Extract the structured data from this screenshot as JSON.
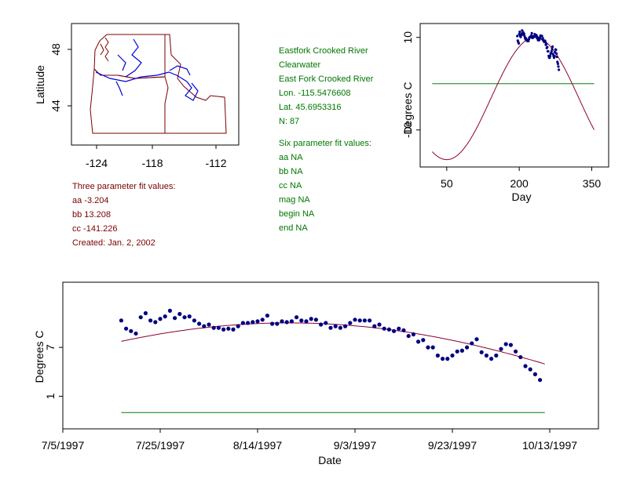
{
  "map": {
    "ylabel": "Latitude",
    "x_ticks": [
      "-124",
      "-118",
      "-112"
    ],
    "y_ticks": [
      "48",
      "44"
    ],
    "colors": {
      "state_lines": "#7a0000",
      "rivers": "#0000dd"
    }
  },
  "three_param": {
    "heading": "Three parameter fit values:",
    "aa": "aa -3.204",
    "bb": "bb 13.208",
    "cc": "cc -141.226",
    "created": "Created:   Jan. 2, 2002"
  },
  "site": {
    "name": "Eastfork Crooked River",
    "basin": "Clearwater",
    "river": "East Fork Crooked River",
    "lon": "Lon. -115.5476608",
    "lat": "Lat. 45.6953316",
    "n": "N: 87"
  },
  "six_param": {
    "heading": "Six parameter fit values:",
    "aa": "aa NA",
    "bb": "bb NA",
    "cc": "cc NA",
    "mag": "mag NA",
    "begin": "begin NA",
    "end": "end NA"
  },
  "chart_data": [
    {
      "type": "scatter",
      "name": "seasonal",
      "xlabel": "Day",
      "ylabel": "Degrees C",
      "x_ticks": [
        "50",
        "200",
        "350"
      ],
      "y_ticks": [
        "10",
        "-10"
      ],
      "xlim": [
        -5,
        385
      ],
      "ylim": [
        -18,
        13
      ],
      "colors": {
        "points": "#000080",
        "fit": "#8b0030",
        "baseline": "#008000"
      },
      "fit_curve": {
        "a": -3.204,
        "b": 13.208,
        "c": -141.226,
        "period": 365,
        "x_range": [
          20,
          355
        ]
      },
      "baseline": 0,
      "x": [
        196,
        197,
        198,
        199,
        200,
        201,
        202,
        203,
        204,
        205,
        206,
        207,
        208,
        209,
        210,
        211,
        212,
        213,
        214,
        215,
        216,
        217,
        218,
        219,
        220,
        221,
        222,
        223,
        224,
        225,
        226,
        227,
        228,
        229,
        230,
        231,
        232,
        233,
        234,
        235,
        236,
        237,
        238,
        239,
        240,
        241,
        242,
        243,
        244,
        245,
        246,
        247,
        248,
        249,
        250,
        251,
        252,
        253,
        254,
        255,
        256,
        257,
        258,
        259,
        260,
        261,
        262,
        263,
        264,
        265,
        266,
        267,
        268,
        269,
        270,
        271,
        272,
        273,
        274,
        275,
        276,
        277,
        278,
        279,
        280,
        281,
        282
      ],
      "values": [
        10.3,
        9.3,
        9.0,
        8.7,
        10.7,
        11.2,
        10.3,
        10.1,
        10.5,
        10.8,
        11.5,
        10.6,
        11.1,
        10.7,
        10.8,
        10.3,
        9.9,
        9.6,
        9.8,
        9.4,
        9.4,
        9.2,
        9.3,
        9.2,
        9.6,
        10.0,
        10.0,
        10.1,
        10.2,
        10.4,
        10.9,
        9.9,
        9.9,
        10.2,
        10.1,
        10.2,
        10.7,
        10.3,
        10.2,
        10.5,
        10.4,
        9.8,
        10.0,
        9.4,
        9.6,
        9.4,
        9.6,
        10.0,
        10.4,
        10.3,
        10.3,
        10.3,
        9.6,
        9.8,
        9.3,
        9.2,
        9.0,
        9.3,
        9.1,
        8.4,
        8.6,
        7.7,
        7.9,
        7.0,
        7.0,
        6.0,
        5.6,
        5.6,
        6.0,
        6.5,
        6.6,
        7.0,
        7.5,
        8.0,
        6.4,
        6.0,
        5.6,
        6.0,
        6.8,
        7.4,
        7.3,
        6.5,
        5.8,
        4.7,
        4.3,
        3.7,
        3.0
      ]
    },
    {
      "type": "scatter",
      "name": "daily",
      "xlabel": "Date",
      "ylabel": "Degrees C",
      "x_ticks": [
        "7/5/1997",
        "7/25/1997",
        "8/14/1997",
        "9/3/1997",
        "9/23/1997",
        "10/13/1997"
      ],
      "y_ticks": [
        "7",
        "1"
      ],
      "xlim": [
        186,
        296
      ],
      "ylim": [
        -3,
        15
      ],
      "colors": {
        "points": "#000080",
        "fit": "#8b0030",
        "baseline": "#008000"
      },
      "fit_curve": {
        "a": -3.204,
        "b": 13.208,
        "c": -141.226,
        "period": 365,
        "x_range": [
          198,
          285
        ]
      },
      "baseline": -1,
      "x": [
        198,
        199,
        200,
        201,
        202,
        203,
        204,
        205,
        206,
        207,
        208,
        209,
        210,
        211,
        212,
        213,
        214,
        215,
        216,
        217,
        218,
        219,
        220,
        221,
        222,
        223,
        224,
        225,
        226,
        227,
        228,
        229,
        230,
        231,
        232,
        233,
        234,
        235,
        236,
        237,
        238,
        239,
        240,
        241,
        242,
        243,
        244,
        245,
        246,
        247,
        248,
        249,
        250,
        251,
        252,
        253,
        254,
        255,
        256,
        257,
        258,
        259,
        260,
        261,
        262,
        263,
        264,
        265,
        266,
        267,
        268,
        269,
        270,
        271,
        272,
        273,
        274,
        275,
        276,
        277,
        278,
        279,
        280,
        281,
        282,
        283,
        284
      ],
      "values": [
        10.3,
        9.3,
        9.0,
        8.7,
        10.7,
        11.2,
        10.3,
        10.1,
        10.5,
        10.8,
        11.5,
        10.6,
        11.1,
        10.7,
        10.8,
        10.3,
        9.9,
        9.6,
        9.8,
        9.4,
        9.4,
        9.2,
        9.3,
        9.2,
        9.6,
        10.0,
        10.0,
        10.1,
        10.2,
        10.4,
        10.9,
        9.9,
        9.9,
        10.2,
        10.1,
        10.2,
        10.7,
        10.3,
        10.2,
        10.5,
        10.4,
        9.8,
        10.0,
        9.4,
        9.6,
        9.4,
        9.6,
        10.0,
        10.4,
        10.3,
        10.3,
        10.3,
        9.6,
        9.8,
        9.3,
        9.2,
        9.0,
        9.3,
        9.1,
        8.4,
        8.6,
        7.7,
        7.9,
        7.0,
        7.0,
        6.0,
        5.6,
        5.6,
        6.0,
        6.5,
        6.6,
        7.0,
        7.5,
        8.0,
        6.4,
        6.0,
        5.6,
        6.0,
        6.8,
        7.4,
        7.3,
        6.5,
        5.8,
        4.7,
        4.3,
        3.7,
        3.0
      ]
    }
  ]
}
